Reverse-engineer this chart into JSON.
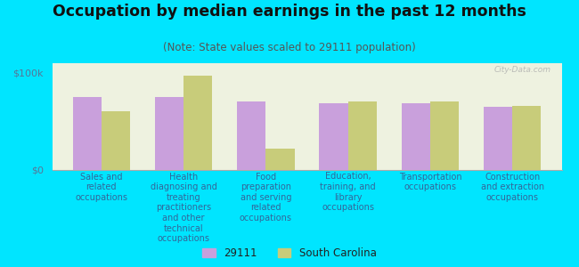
{
  "title": "Occupation by median earnings in the past 12 months",
  "subtitle": "(Note: State values scaled to 29111 population)",
  "background_outer": "#00e5ff",
  "background_inner": "#eef2e0",
  "bar_color_29111": "#c9a0dc",
  "bar_color_sc": "#c8cc7a",
  "categories": [
    "Sales and\nrelated\noccupations",
    "Health\ndiagnosing and\ntreating\npractitioners\nand other\ntechnical\noccupations",
    "Food\npreparation\nand serving\nrelated\noccupations",
    "Education,\ntraining, and\nlibrary\noccupations",
    "Transportation\noccupations",
    "Construction\nand extraction\noccupations"
  ],
  "values_29111": [
    75000,
    75000,
    70000,
    68000,
    68000,
    65000
  ],
  "values_sc": [
    60000,
    97000,
    22000,
    70000,
    70000,
    66000
  ],
  "ylim": [
    0,
    110000
  ],
  "yticks": [
    0,
    100000
  ],
  "ytick_labels": [
    "$0",
    "$100k"
  ],
  "legend_labels": [
    "29111",
    "South Carolina"
  ],
  "cat_fontsize": 7.0,
  "title_fontsize": 12.5,
  "subtitle_fontsize": 8.5,
  "watermark": "City-Data.com"
}
